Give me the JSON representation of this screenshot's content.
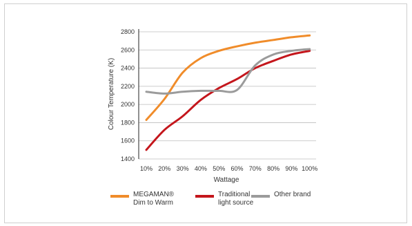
{
  "chart_data": {
    "type": "line",
    "title": "",
    "xlabel": "Wattage",
    "ylabel": "Colour Temperature (K)",
    "categories": [
      "10%",
      "20%",
      "30%",
      "40%",
      "50%",
      "60%",
      "70%",
      "80%",
      "90%",
      "100%"
    ],
    "ylim": [
      1400,
      2800
    ],
    "yticks": [
      1400,
      1600,
      1800,
      2000,
      2200,
      2400,
      2600,
      2800
    ],
    "grid": "horizontal",
    "legend_position": "bottom",
    "series": [
      {
        "name": "MEGAMAN® Dim to Warm",
        "legend_lines": [
          "MEGAMAN®",
          "Dim to Warm"
        ],
        "color": "#f08c2a",
        "values": [
          1830,
          2060,
          2350,
          2510,
          2590,
          2640,
          2680,
          2710,
          2740,
          2760
        ]
      },
      {
        "name": "Traditional light source",
        "legend_lines": [
          "Traditional",
          "light source"
        ],
        "color": "#c4161c",
        "values": [
          1500,
          1720,
          1870,
          2050,
          2180,
          2280,
          2400,
          2480,
          2550,
          2590
        ]
      },
      {
        "name": "Other brand",
        "legend_lines": [
          "Other brand"
        ],
        "color": "#9b9b9b",
        "values": [
          2140,
          2120,
          2140,
          2150,
          2150,
          2160,
          2430,
          2550,
          2590,
          2610
        ]
      }
    ]
  }
}
